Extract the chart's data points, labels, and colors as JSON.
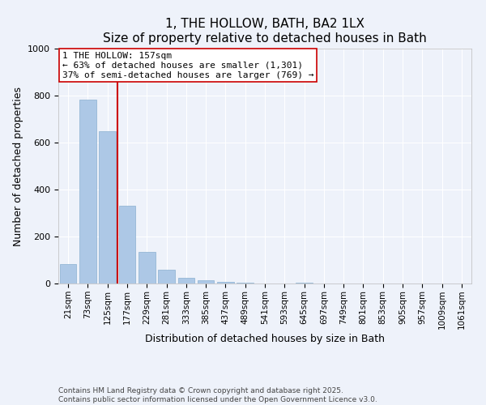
{
  "title": "1, THE HOLLOW, BATH, BA2 1LX",
  "subtitle": "Size of property relative to detached houses in Bath",
  "xlabel": "Distribution of detached houses by size in Bath",
  "ylabel": "Number of detached properties",
  "categories": [
    "21sqm",
    "73sqm",
    "125sqm",
    "177sqm",
    "229sqm",
    "281sqm",
    "333sqm",
    "385sqm",
    "437sqm",
    "489sqm",
    "541sqm",
    "593sqm",
    "645sqm",
    "697sqm",
    "749sqm",
    "801sqm",
    "853sqm",
    "905sqm",
    "957sqm",
    "1009sqm",
    "1061sqm"
  ],
  "values": [
    83,
    783,
    648,
    330,
    133,
    57,
    24,
    13,
    7,
    3,
    0,
    0,
    5,
    0,
    0,
    0,
    0,
    0,
    0,
    0,
    0
  ],
  "bar_color": "#adc8e6",
  "bar_edge_color": "#8ab0d0",
  "background_color": "#eef2fa",
  "grid_color": "#ffffff",
  "vline_x": 2.5,
  "vline_color": "#cc0000",
  "ylim": [
    0,
    1000
  ],
  "annotation_line1": "1 THE HOLLOW: 157sqm",
  "annotation_line2": "← 63% of detached houses are smaller (1,301)",
  "annotation_line3": "37% of semi-detached houses are larger (769) →",
  "footer_text": "Contains HM Land Registry data © Crown copyright and database right 2025.\nContains public sector information licensed under the Open Government Licence v3.0.",
  "title_fontsize": 11,
  "subtitle_fontsize": 9.5,
  "axis_label_fontsize": 9,
  "tick_fontsize": 7.5,
  "annotation_fontsize": 8,
  "footer_fontsize": 6.5
}
